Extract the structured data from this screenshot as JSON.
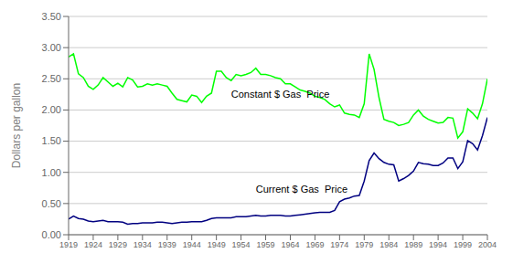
{
  "chart_data": {
    "type": "line",
    "y_label": "Dollars per gallon",
    "x": [
      1919,
      1920,
      1921,
      1922,
      1923,
      1924,
      1925,
      1926,
      1927,
      1928,
      1929,
      1930,
      1931,
      1932,
      1933,
      1934,
      1935,
      1936,
      1937,
      1938,
      1939,
      1940,
      1941,
      1942,
      1943,
      1944,
      1945,
      1946,
      1947,
      1948,
      1949,
      1950,
      1951,
      1952,
      1953,
      1954,
      1955,
      1956,
      1957,
      1958,
      1959,
      1960,
      1961,
      1962,
      1963,
      1964,
      1965,
      1966,
      1967,
      1968,
      1969,
      1970,
      1971,
      1972,
      1973,
      1974,
      1975,
      1976,
      1977,
      1978,
      1979,
      1980,
      1981,
      1982,
      1983,
      1984,
      1985,
      1986,
      1987,
      1988,
      1989,
      1990,
      1991,
      1992,
      1993,
      1994,
      1995,
      1996,
      1997,
      1998,
      1999,
      2000,
      2001,
      2002,
      2003,
      2004
    ],
    "series": [
      {
        "color": "#00FF00",
        "values": [
          2.85,
          2.9,
          2.58,
          2.52,
          2.38,
          2.33,
          2.4,
          2.52,
          2.45,
          2.38,
          2.43,
          2.37,
          2.52,
          2.48,
          2.37,
          2.38,
          2.42,
          2.4,
          2.42,
          2.4,
          2.38,
          2.27,
          2.17,
          2.15,
          2.13,
          2.24,
          2.22,
          2.12,
          2.22,
          2.27,
          2.62,
          2.62,
          2.52,
          2.47,
          2.57,
          2.55,
          2.57,
          2.6,
          2.67,
          2.57,
          2.57,
          2.55,
          2.52,
          2.5,
          2.42,
          2.42,
          2.37,
          2.32,
          2.3,
          2.27,
          2.22,
          2.2,
          2.17,
          2.1,
          2.05,
          2.08,
          1.95,
          1.93,
          1.92,
          1.88,
          2.1,
          2.9,
          2.65,
          2.2,
          1.85,
          1.82,
          1.8,
          1.75,
          1.77,
          1.8,
          1.92,
          2.0,
          1.9,
          1.85,
          1.82,
          1.79,
          1.8,
          1.88,
          1.87,
          1.55,
          1.65,
          2.02,
          1.95,
          1.86,
          2.1,
          2.5
        ]
      },
      {
        "color": "#000080",
        "values": [
          0.25,
          0.3,
          0.26,
          0.25,
          0.22,
          0.21,
          0.22,
          0.23,
          0.21,
          0.21,
          0.21,
          0.2,
          0.17,
          0.18,
          0.18,
          0.19,
          0.19,
          0.19,
          0.2,
          0.2,
          0.19,
          0.18,
          0.19,
          0.2,
          0.2,
          0.21,
          0.21,
          0.21,
          0.23,
          0.26,
          0.27,
          0.27,
          0.27,
          0.27,
          0.29,
          0.29,
          0.29,
          0.3,
          0.31,
          0.3,
          0.3,
          0.31,
          0.31,
          0.31,
          0.3,
          0.3,
          0.31,
          0.32,
          0.33,
          0.34,
          0.35,
          0.36,
          0.36,
          0.36,
          0.39,
          0.53,
          0.57,
          0.59,
          0.62,
          0.63,
          0.86,
          1.19,
          1.31,
          1.22,
          1.16,
          1.13,
          1.12,
          0.86,
          0.9,
          0.95,
          1.02,
          1.16,
          1.14,
          1.13,
          1.11,
          1.11,
          1.15,
          1.23,
          1.23,
          1.06,
          1.17,
          1.51,
          1.46,
          1.36,
          1.59,
          1.88
        ]
      }
    ],
    "xlim": [
      1919,
      2004
    ],
    "xticks": [
      1919,
      1924,
      1929,
      1934,
      1939,
      1944,
      1949,
      1954,
      1959,
      1964,
      1969,
      1974,
      1979,
      1984,
      1989,
      1994,
      1999,
      2004
    ],
    "ylim": [
      0.0,
      3.5
    ],
    "yticks": [
      {
        "value": 0.0,
        "label": "0.00"
      },
      {
        "value": 0.5,
        "label": "0.50"
      },
      {
        "value": 1.0,
        "label": "1.00"
      },
      {
        "value": 1.5,
        "label": "1.50"
      },
      {
        "value": 2.0,
        "label": "2.00"
      },
      {
        "value": 2.5,
        "label": "2.50"
      },
      {
        "value": 3.0,
        "label": "3.00"
      },
      {
        "value": 3.5,
        "label": "3.50"
      }
    ],
    "grid": "y",
    "annotations": [
      {
        "text": "Constant $ Gas  Price",
        "x": 1952,
        "y": 2.2
      },
      {
        "text": "Current $ Gas  Price",
        "x": 1957,
        "y": 0.68
      }
    ]
  }
}
